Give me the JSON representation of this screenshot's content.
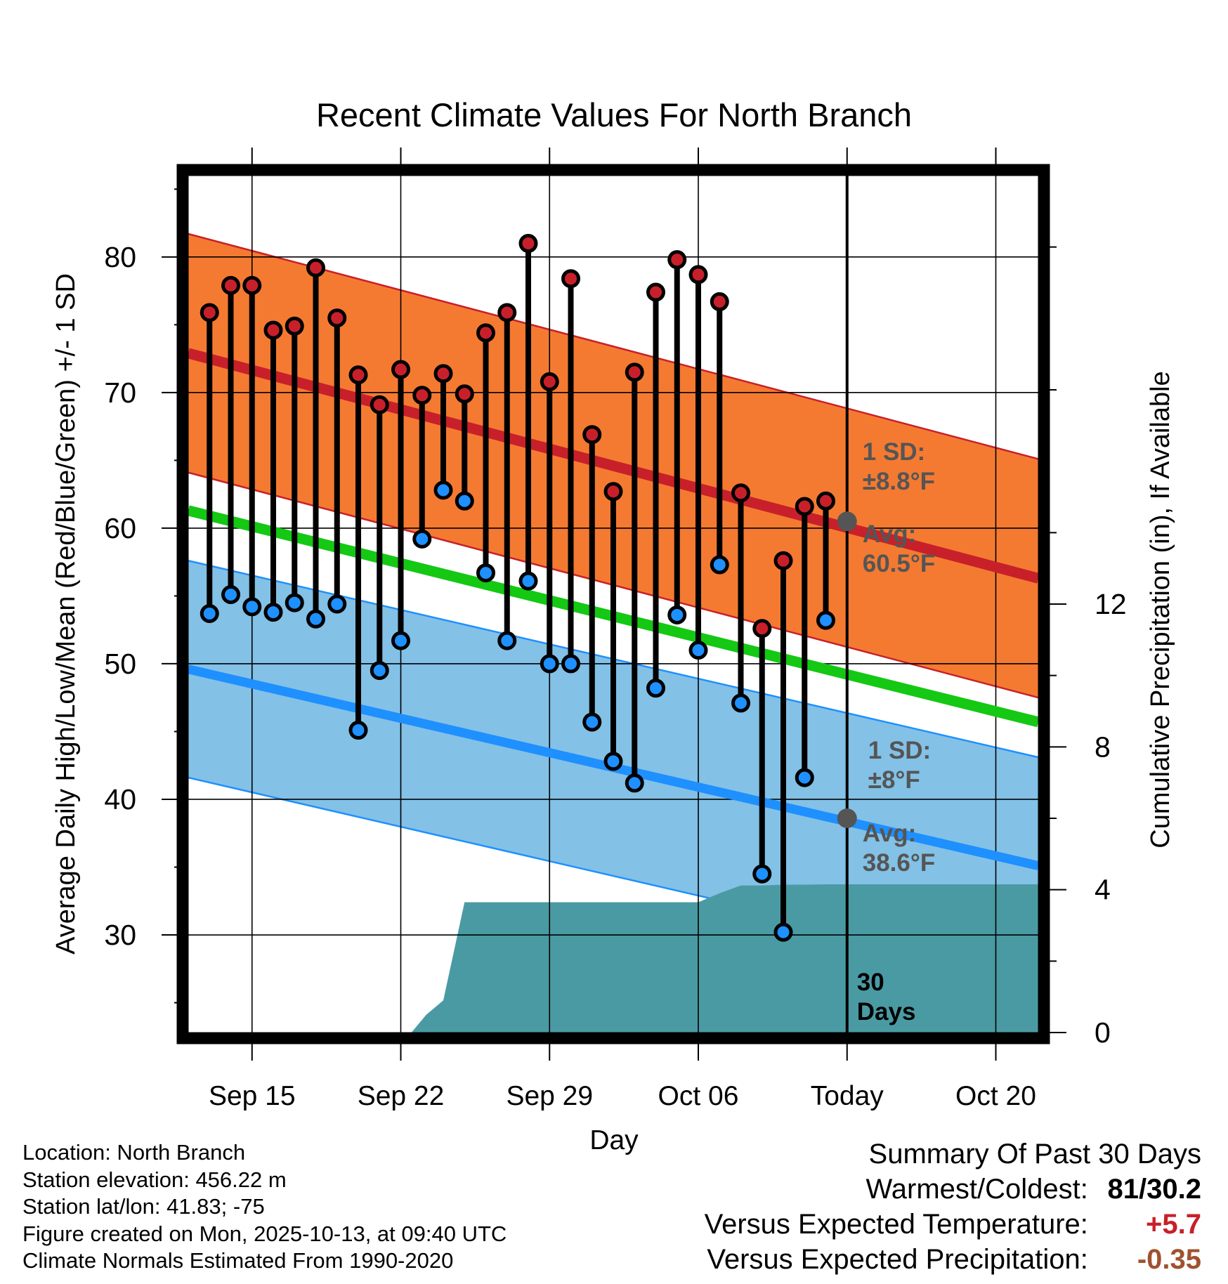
{
  "chart_data": {
    "type": "line",
    "title": "Recent Climate Values For North Branch",
    "xlabel": "Day",
    "ylabel": "Average Daily High/Low/Mean (Red/Blue/Green) +/- 1 SD",
    "y2label": "Cumulative Precipitation (in), If Available",
    "xlim": [
      0,
      40
    ],
    "ylim": [
      22.8,
      86
    ],
    "y2lim": [
      0,
      24
    ],
    "x_ticks": [
      {
        "x": 3,
        "label": "Sep 15"
      },
      {
        "x": 10,
        "label": "Sep 22"
      },
      {
        "x": 17,
        "label": "Sep 29"
      },
      {
        "x": 24,
        "label": "Oct 06"
      },
      {
        "x": 31,
        "label": "Today"
      },
      {
        "x": 38,
        "label": "Oct 20"
      }
    ],
    "y_ticks": [
      30,
      40,
      50,
      60,
      70,
      80
    ],
    "y2_ticks": [
      0,
      4,
      8,
      12
    ],
    "grid": true,
    "today_x": 31,
    "normals": {
      "high_mean": {
        "start": 72.9,
        "end": 56.3
      },
      "high_sd": 8.8,
      "low_mean": {
        "start": 49.6,
        "end": 35.1
      },
      "low_sd": 8,
      "avg_mean": {
        "start": 61.3,
        "end": 45.7
      }
    },
    "series": [
      {
        "name": "High",
        "x": [
          1,
          2,
          3,
          4,
          5,
          6,
          7,
          8,
          9,
          10,
          11,
          12,
          13,
          14,
          15,
          16,
          17,
          18,
          19,
          20,
          21,
          22,
          23,
          24,
          25,
          26,
          27,
          28,
          29,
          30
        ],
        "values": [
          75.9,
          77.9,
          77.9,
          74.6,
          74.9,
          79.2,
          75.5,
          71.3,
          69.1,
          71.7,
          69.8,
          71.4,
          69.9,
          74.4,
          75.9,
          81,
          70.8,
          78.4,
          66.9,
          62.7,
          71.5,
          77.4,
          79.8,
          78.7,
          76.7,
          62.6,
          52.6,
          57.6,
          61.6,
          62
        ],
        "color": "#c8202a"
      },
      {
        "name": "Low",
        "x": [
          1,
          2,
          3,
          4,
          5,
          6,
          7,
          8,
          9,
          10,
          11,
          12,
          13,
          14,
          15,
          16,
          17,
          18,
          19,
          20,
          21,
          22,
          23,
          24,
          25,
          26,
          27,
          28,
          29,
          30
        ],
        "values": [
          53.7,
          55.1,
          54.2,
          53.8,
          54.5,
          53.3,
          54.4,
          45.1,
          49.5,
          51.7,
          59.2,
          62.8,
          62,
          56.7,
          51.7,
          56.1,
          50,
          50,
          45.7,
          42.8,
          41.2,
          48.2,
          53.6,
          51,
          57.3,
          47.1,
          34.5,
          30.2,
          41.6,
          53.2
        ],
        "color": "#1e90ff"
      },
      {
        "name": "Cumulative Precipitation",
        "axis": "y2",
        "x": [
          10.5,
          11.2,
          12,
          13,
          22,
          24,
          25,
          26,
          27,
          28,
          29,
          30,
          31,
          40
        ],
        "values": [
          0,
          0.5,
          0.9,
          3.65,
          3.65,
          3.65,
          3.9,
          4.12,
          4.12,
          4.14,
          4.14,
          4.15,
          4.15,
          4.15
        ],
        "color": "#4a9aa3"
      }
    ],
    "annotations": {
      "high_sd_label": "1 SD:",
      "high_sd_value": "±8.8°F",
      "high_avg_label": "Avg:",
      "high_avg_value": "60.5°F",
      "low_sd_label": "1 SD:",
      "low_sd_value": "±8°F",
      "low_avg_label": "Avg:",
      "low_avg_value": "38.6°F",
      "today_high_avg": 60.5,
      "today_low_avg": 38.6,
      "days_line1": "30",
      "days_line2": "Days"
    },
    "colors": {
      "high_band": "#f47a31",
      "high_line": "#c8202a",
      "low_band": "#83c1e6",
      "low_line": "#1e90ff",
      "mean_line": "#14c814",
      "precip": "#4a9aa3",
      "annotation": "#555555"
    }
  },
  "footer": {
    "location": "Location: North Branch",
    "elevation": "Station elevation: 456.22 m",
    "latlon": "Station lat/lon: 41.83; -75",
    "created": "Figure created on Mon, 2025-10-13, at 09:40 UTC",
    "normals": "Climate Normals Estimated From 1990-2020"
  },
  "summary": {
    "title": "Summary Of Past 30 Days",
    "warmest_label": "Warmest/Coldest:",
    "warmest_value": "81/30.2",
    "temp_label": "Versus Expected Temperature:",
    "temp_value": "+5.7",
    "temp_color": "#c8202a",
    "precip_label": "Versus Expected Precipitation:",
    "precip_value": "-0.35",
    "precip_color": "#a0522d"
  }
}
